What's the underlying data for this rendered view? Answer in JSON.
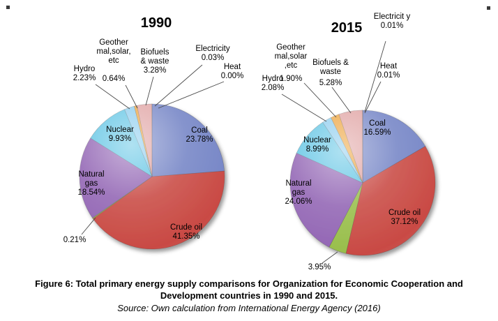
{
  "figure": {
    "caption": "Figure 6: Total primary energy supply comparisons for Organization for Economic Cooperation and Development countries in 1990 and 2015.",
    "source": "Source: Own calculation from International Energy Agency (2016)"
  },
  "chart_data": [
    {
      "type": "pie",
      "title": "1990",
      "legend": "none",
      "label_style": "category name + percentage, small slices labeled outside with leader lines",
      "slices": [
        {
          "label": "Coal",
          "value": 23.78,
          "pct_text": "23.78%",
          "color": "#7585C6"
        },
        {
          "label": "Crude oil",
          "value": 41.35,
          "pct_text": "41.35%",
          "color": "#C94A44"
        },
        {
          "label": "",
          "value": 0.21,
          "pct_text": "0.21%",
          "color": "#98BE4A"
        },
        {
          "label": "Natural gas",
          "value": 18.54,
          "pct_text": "18.54%",
          "color": "#9265B4"
        },
        {
          "label": "Nuclear",
          "value": 9.93,
          "pct_text": "9.93%",
          "color": "#5FC4E4"
        },
        {
          "label": "Hydro",
          "value": 2.23,
          "pct_text": "2.23%",
          "color": "#8CCCEE"
        },
        {
          "label": "Geother mal,solar, etc",
          "value": 0.64,
          "pct_text": "0.64%",
          "color": "#ECA33C"
        },
        {
          "label": "Biofuels & waste",
          "value": 3.28,
          "pct_text": "3.28%",
          "color": "#E0A3A3"
        },
        {
          "label": "Electricity",
          "value": 0.03,
          "pct_text": "0.03%",
          "color": "#D9C39B"
        },
        {
          "label": "Heat",
          "value": 0.0,
          "pct_text": "0.00%",
          "color": "#C9B7A2"
        }
      ]
    },
    {
      "type": "pie",
      "title": "2015",
      "legend": "none",
      "label_style": "category name + percentage, small slices labeled outside with leader lines",
      "slices": [
        {
          "label": "Coal",
          "value": 16.59,
          "pct_text": "16.59%",
          "color": "#7585C6"
        },
        {
          "label": "Crude oil",
          "value": 37.12,
          "pct_text": "37.12%",
          "color": "#C94A44"
        },
        {
          "label": "",
          "value": 3.95,
          "pct_text": "3.95%",
          "color": "#98BE4A"
        },
        {
          "label": "Natural gas",
          "value": 24.06,
          "pct_text": "24.06%",
          "color": "#9265B4"
        },
        {
          "label": "Nuclear",
          "value": 8.99,
          "pct_text": "8.99%",
          "color": "#5FC4E4"
        },
        {
          "label": "Hydro",
          "value": 2.08,
          "pct_text": "2.08%",
          "color": "#8CCCEE"
        },
        {
          "label": "Geother mal,solar ,etc",
          "value": 1.9,
          "pct_text": "1.90%",
          "color": "#ECA33C"
        },
        {
          "label": "Biofuels & waste",
          "value": 5.28,
          "pct_text": "5.28%",
          "color": "#E0A3A3"
        },
        {
          "label": "Electricit y",
          "value": 0.01,
          "pct_text": "0.01%",
          "color": "#D9C39B"
        },
        {
          "label": "Heat",
          "value": 0.01,
          "pct_text": "0.01%",
          "color": "#C9B7A2"
        }
      ]
    }
  ]
}
